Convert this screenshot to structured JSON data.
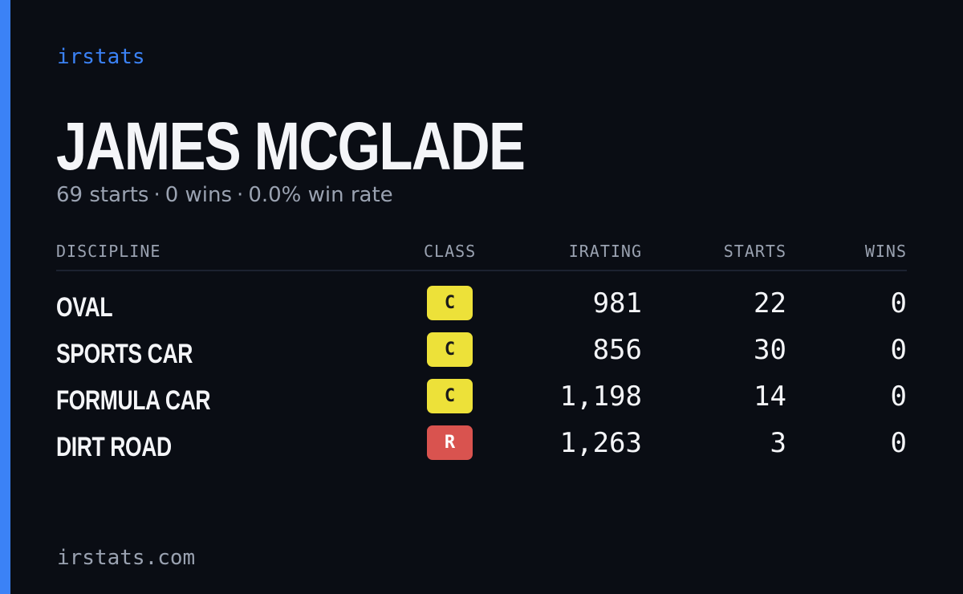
{
  "brand": "irstats",
  "player": {
    "name": "JAMES MCGLADE",
    "starts": "69 starts",
    "wins": "0 wins",
    "win_rate": "0.0% win rate",
    "separator": "·"
  },
  "table": {
    "headers": {
      "discipline": "DISCIPLINE",
      "class": "CLASS",
      "irating": "IRATING",
      "starts": "STARTS",
      "wins": "WINS"
    },
    "rows": [
      {
        "discipline": "OVAL",
        "class": "C",
        "irating": "981",
        "starts": "22",
        "wins": "0"
      },
      {
        "discipline": "SPORTS CAR",
        "class": "C",
        "irating": "856",
        "starts": "30",
        "wins": "0"
      },
      {
        "discipline": "FORMULA CAR",
        "class": "C",
        "irating": "1,198",
        "starts": "14",
        "wins": "0"
      },
      {
        "discipline": "DIRT ROAD",
        "class": "R",
        "irating": "1,263",
        "starts": "3",
        "wins": "0"
      }
    ]
  },
  "footer": "irstats.com",
  "colors": {
    "accent": "#3b82f6",
    "background": "#0a0d14",
    "class_c": "#ede139",
    "class_r": "#d9534f"
  }
}
